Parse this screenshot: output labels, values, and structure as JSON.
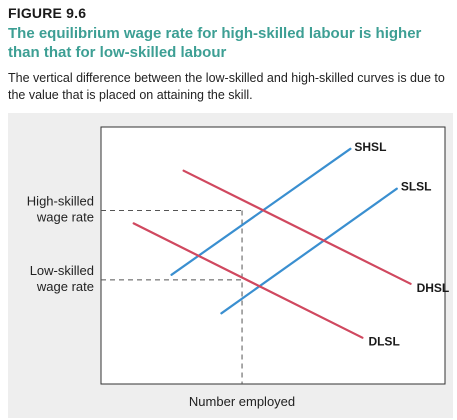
{
  "figure": {
    "label": "FIGURE 9.6",
    "title": "The equilibrium wage rate for high-skilled labour is higher than that for low-skilled labour",
    "caption": "The vertical difference between the low-skilled and high-skilled curves is due to the value that is placed on attaining the skill."
  },
  "chart_data": {
    "type": "line",
    "title": "",
    "xlabel": "Number employed",
    "ylabel": "",
    "xlim": [
      0,
      10
    ],
    "ylim": [
      0,
      10
    ],
    "grid": false,
    "legend": "none",
    "y_markers": [
      {
        "lines": [
          "High-skilled",
          "wage rate"
        ],
        "y": 6.75
      },
      {
        "lines": [
          "Low-skilled",
          "wage rate"
        ],
        "y": 4.05
      }
    ],
    "x_marker": 4.1,
    "series": [
      {
        "name": "SHSL",
        "kind": "supply",
        "color": "#3a8fd0",
        "x": [
          2.05,
          7.25
        ],
        "y": [
          4.25,
          9.15
        ]
      },
      {
        "name": "SLSL",
        "kind": "supply",
        "color": "#3a8fd0",
        "x": [
          3.5,
          8.6
        ],
        "y": [
          2.75,
          7.6
        ]
      },
      {
        "name": "DHSL",
        "kind": "demand",
        "color": "#d0485f",
        "x": [
          2.4,
          9.0
        ],
        "y": [
          8.3,
          3.9
        ]
      },
      {
        "name": "DLSL",
        "kind": "demand",
        "color": "#d0485f",
        "x": [
          0.95,
          7.6
        ],
        "y": [
          6.25,
          1.8
        ]
      }
    ]
  }
}
